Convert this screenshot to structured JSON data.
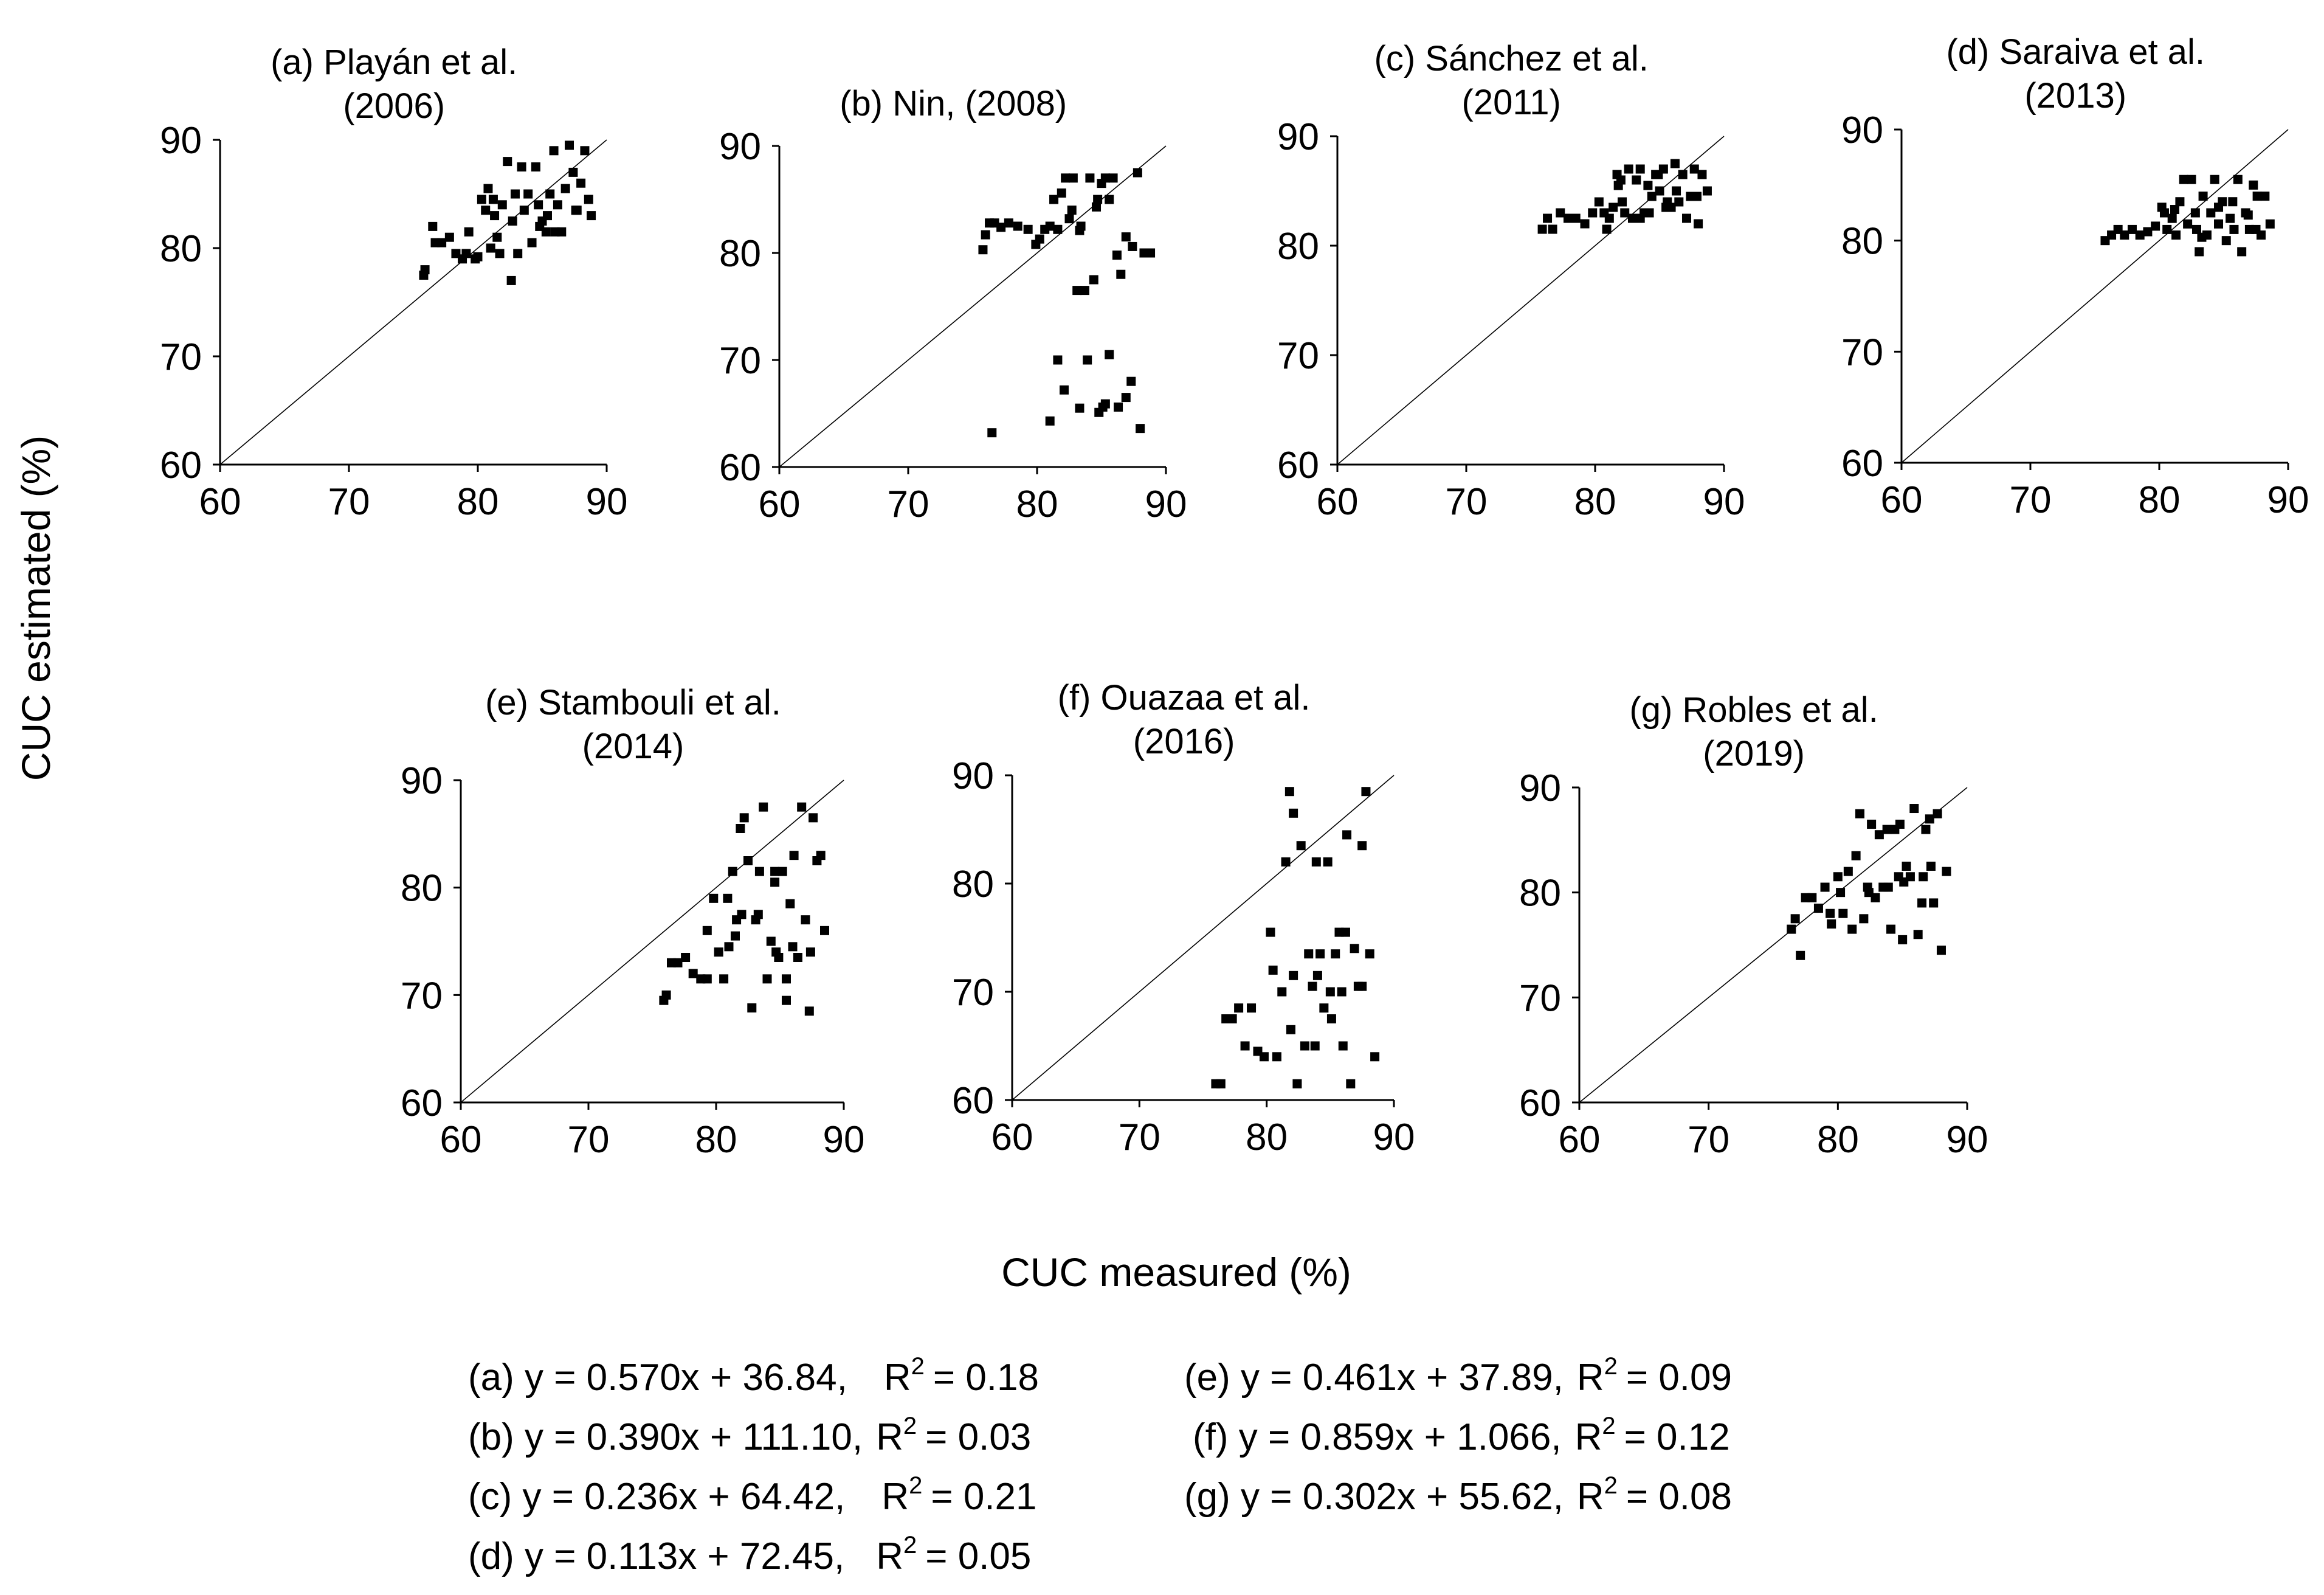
{
  "figure": {
    "ylabel": "CUC estimated (%)",
    "xlabel": "CUC measured (%)"
  },
  "chart_data": [
    {
      "type": "scatter",
      "id": "a",
      "title_lines": [
        "(a) Playán et al.",
        "(2006)"
      ],
      "xlim": [
        60,
        90
      ],
      "ylim": [
        60,
        90
      ],
      "xticks": [
        60,
        70,
        80,
        90
      ],
      "yticks": [
        60,
        70,
        80,
        90
      ],
      "reference_line": "1:1",
      "x": [
        75.8,
        75.9,
        76.5,
        76.7,
        77.2,
        77.8,
        78.3,
        78.8,
        79.3,
        79.8,
        80.3,
        80.8,
        81.0,
        81.3,
        81.5,
        81.7,
        81.9,
        82.3,
        82.6,
        82.9,
        83.1,
        83.4,
        83.6,
        83.9,
        84.2,
        84.5,
        84.8,
        85.0,
        85.3,
        85.6,
        85.9,
        86.2,
        86.5,
        86.8,
        87.1,
        87.4,
        87.7,
        88.0,
        88.3,
        88.6,
        88.8,
        80.6,
        81.2,
        79.1,
        82.7,
        84.7,
        86.0,
        87.6,
        80.0,
        85.4
      ],
      "y": [
        77.5,
        78.0,
        82.0,
        80.5,
        80.5,
        81.0,
        79.5,
        79.0,
        81.5,
        79.0,
        84.5,
        85.5,
        80.0,
        83.0,
        81.0,
        79.5,
        84.0,
        88.0,
        77.0,
        85.0,
        79.5,
        87.5,
        83.5,
        85.0,
        80.5,
        87.5,
        82.0,
        82.5,
        81.5,
        85.0,
        89.0,
        84.0,
        81.5,
        85.5,
        89.5,
        87.0,
        83.5,
        86.0,
        89.0,
        84.5,
        83.0,
        83.5,
        84.5,
        79.5,
        82.5,
        84.0,
        81.5,
        83.5,
        79.2,
        83.0
      ]
    },
    {
      "type": "scatter",
      "id": "b",
      "title_lines": [
        "(b) Nin, (2008)"
      ],
      "xlim": [
        60,
        90
      ],
      "ylim": [
        60,
        90
      ],
      "xticks": [
        60,
        70,
        80,
        90
      ],
      "yticks": [
        60,
        70,
        80,
        90
      ],
      "reference_line": "1:1",
      "x": [
        75.8,
        76.0,
        76.3,
        76.7,
        77.2,
        77.8,
        78.5,
        79.3,
        79.9,
        80.2,
        80.6,
        81.0,
        81.3,
        81.6,
        81.9,
        82.2,
        82.5,
        82.8,
        83.1,
        83.4,
        83.7,
        84.1,
        84.4,
        84.7,
        85.0,
        85.3,
        85.6,
        85.9,
        86.2,
        86.5,
        86.9,
        87.4,
        87.8,
        88.3,
        88.8,
        82.7,
        84.6,
        83.3,
        76.5,
        81.0,
        81.6,
        82.1,
        83.3,
        83.9,
        84.8,
        85.1,
        85.6,
        86.3,
        86.9,
        87.3,
        88.0,
        85.3
      ],
      "y": [
        80.3,
        81.7,
        82.8,
        82.8,
        82.4,
        82.8,
        82.5,
        82.2,
        80.8,
        81.3,
        82.2,
        82.5,
        85.0,
        82.2,
        85.6,
        87.0,
        83.2,
        87.0,
        76.5,
        82.5,
        76.5,
        87.0,
        77.5,
        85.0,
        86.5,
        87.0,
        85.0,
        87.0,
        79.8,
        78.0,
        81.5,
        80.6,
        87.5,
        80.0,
        80.0,
        84.0,
        84.3,
        82.1,
        63.2,
        64.3,
        70.0,
        67.2,
        65.5,
        70.0,
        65.1,
        65.6,
        70.5,
        65.6,
        66.5,
        68.0,
        63.6,
        65.9
      ]
    },
    {
      "type": "scatter",
      "id": "c",
      "title_lines": [
        "(c) Sánchez et al.",
        "(2011)"
      ],
      "xlim": [
        60,
        90
      ],
      "ylim": [
        60,
        90
      ],
      "xticks": [
        60,
        70,
        80,
        90
      ],
      "yticks": [
        60,
        70,
        80,
        90
      ],
      "reference_line": "1:1",
      "x": [
        75.9,
        76.3,
        76.7,
        77.3,
        77.9,
        78.5,
        79.2,
        79.8,
        80.3,
        80.7,
        81.1,
        81.4,
        81.7,
        82.0,
        82.3,
        82.6,
        82.9,
        83.2,
        83.5,
        83.8,
        84.1,
        84.4,
        84.7,
        85.0,
        85.3,
        85.6,
        85.9,
        86.2,
        86.5,
        86.8,
        87.1,
        87.4,
        87.7,
        88.0,
        88.3,
        88.7,
        82.1,
        83.5,
        84.9,
        86.3,
        80.9,
        85.5,
        87.9,
        81.8,
        84.2
      ],
      "y": [
        81.5,
        82.5,
        81.5,
        83.0,
        82.5,
        82.5,
        82.0,
        83.0,
        84.0,
        83.0,
        82.5,
        83.5,
        86.5,
        86.0,
        83.0,
        87.0,
        82.5,
        86.0,
        87.0,
        83.0,
        85.5,
        84.5,
        86.5,
        85.0,
        87.0,
        84.0,
        83.5,
        87.5,
        84.0,
        86.5,
        82.5,
        84.5,
        87.0,
        82.0,
        86.5,
        85.0,
        84.0,
        82.5,
        86.5,
        85.0,
        81.5,
        83.5,
        84.5,
        85.5,
        83.0
      ]
    },
    {
      "type": "scatter",
      "id": "d",
      "title_lines": [
        "(d) Saraiva et al.",
        "(2013)"
      ],
      "xlim": [
        60,
        90
      ],
      "ylim": [
        60,
        90
      ],
      "xticks": [
        60,
        70,
        80,
        90
      ],
      "yticks": [
        60,
        70,
        80,
        90
      ],
      "reference_line": "1:1",
      "x": [
        75.8,
        76.3,
        76.8,
        77.3,
        77.9,
        78.5,
        79.1,
        79.7,
        80.2,
        80.6,
        81.0,
        81.3,
        81.6,
        81.9,
        82.2,
        82.5,
        82.8,
        83.1,
        83.4,
        83.7,
        84.0,
        84.3,
        84.6,
        84.9,
        85.2,
        85.5,
        85.8,
        86.1,
        86.4,
        86.7,
        87.0,
        87.3,
        87.6,
        87.9,
        88.2,
        88.6,
        81.2,
        82.9,
        84.6,
        86.9,
        80.4,
        85.7,
        87.5,
        83.3
      ],
      "y": [
        80.0,
        80.5,
        81.0,
        80.5,
        81.0,
        80.5,
        80.8,
        81.3,
        83.0,
        81.0,
        82.0,
        80.5,
        83.5,
        85.5,
        81.5,
        85.5,
        82.5,
        79.0,
        84.0,
        80.5,
        82.5,
        85.5,
        81.5,
        83.5,
        80.0,
        82.0,
        81.0,
        85.5,
        79.0,
        82.5,
        81.0,
        85.0,
        84.0,
        80.5,
        84.0,
        81.5,
        82.8,
        81.0,
        83.0,
        82.3,
        82.5,
        83.5,
        81.0,
        80.3
      ]
    },
    {
      "type": "scatter",
      "id": "e",
      "title_lines": [
        "(e) Stambouli et al.",
        "(2014)"
      ],
      "xlim": [
        60,
        90
      ],
      "ylim": [
        60,
        90
      ],
      "xticks": [
        60,
        70,
        80,
        90
      ],
      "yticks": [
        60,
        70,
        80,
        90
      ],
      "reference_line": "1:1",
      "x": [
        75.9,
        76.1,
        76.5,
        77.0,
        77.6,
        78.2,
        78.8,
        79.3,
        79.8,
        80.2,
        80.6,
        81.0,
        81.3,
        81.6,
        81.9,
        82.2,
        82.5,
        82.8,
        83.1,
        83.4,
        83.7,
        84.0,
        84.3,
        84.6,
        84.9,
        85.2,
        85.5,
        85.8,
        86.1,
        86.4,
        86.7,
        87.0,
        87.3,
        87.6,
        87.9,
        88.2,
        88.5,
        82.0,
        83.3,
        84.7,
        86.0,
        87.4,
        80.9,
        81.5,
        85.5,
        79.3,
        84.6
      ],
      "y": [
        69.5,
        70.0,
        73.0,
        73.0,
        73.5,
        72.0,
        71.5,
        71.5,
        79.0,
        74.0,
        71.5,
        74.5,
        81.5,
        77.0,
        85.5,
        86.5,
        82.5,
        68.8,
        77.0,
        81.5,
        87.5,
        71.5,
        75.0,
        81.5,
        73.5,
        81.5,
        69.5,
        78.5,
        83.0,
        73.5,
        87.5,
        77.0,
        68.5,
        86.5,
        82.5,
        83.0,
        76.0,
        77.5,
        77.5,
        74.0,
        74.5,
        74.0,
        79.0,
        75.5,
        71.5,
        76.0,
        80.5
      ]
    },
    {
      "type": "scatter",
      "id": "f",
      "title_lines": [
        "(f) Ouazaa et al.",
        "(2016)"
      ],
      "xlim": [
        60,
        90
      ],
      "ylim": [
        60,
        90
      ],
      "xticks": [
        60,
        70,
        80,
        90
      ],
      "yticks": [
        60,
        70,
        80,
        90
      ],
      "reference_line": "1:1",
      "x": [
        76.0,
        76.4,
        76.8,
        77.3,
        77.8,
        78.3,
        78.8,
        79.3,
        79.8,
        80.3,
        80.8,
        81.2,
        81.5,
        81.8,
        82.1,
        82.4,
        82.7,
        83.0,
        83.3,
        83.6,
        83.9,
        84.2,
        84.5,
        84.8,
        85.1,
        85.4,
        85.7,
        86.0,
        86.3,
        86.6,
        86.9,
        87.2,
        87.5,
        87.8,
        88.1,
        88.5,
        82.1,
        84.0,
        85.9,
        87.5,
        80.5,
        83.8,
        86.2,
        81.9,
        85.0
      ],
      "y": [
        61.5,
        61.5,
        67.5,
        67.5,
        68.5,
        65.0,
        68.5,
        64.5,
        64.0,
        75.5,
        64.0,
        70.0,
        82.0,
        88.5,
        71.5,
        61.5,
        83.5,
        65.0,
        73.5,
        70.5,
        82.0,
        73.5,
        68.5,
        82.0,
        67.5,
        73.5,
        75.5,
        65.0,
        84.5,
        61.5,
        74.0,
        70.5,
        83.5,
        88.5,
        73.5,
        64.0,
        86.5,
        71.5,
        70.0,
        70.5,
        72.0,
        65.0,
        75.5,
        66.5,
        70.0
      ]
    },
    {
      "type": "scatter",
      "id": "g",
      "title_lines": [
        "(g) Robles et al.",
        "(2019)"
      ],
      "xlim": [
        60,
        90
      ],
      "ylim": [
        60,
        90
      ],
      "xticks": [
        60,
        70,
        80,
        90
      ],
      "yticks": [
        60,
        70,
        80,
        90
      ],
      "reference_line": "1:1",
      "x": [
        76.4,
        76.7,
        77.1,
        77.5,
        78.0,
        78.5,
        79.0,
        79.5,
        80.0,
        80.4,
        80.8,
        81.1,
        81.4,
        81.7,
        82.0,
        82.3,
        82.6,
        82.9,
        83.2,
        83.5,
        83.8,
        84.1,
        84.4,
        84.7,
        85.0,
        85.3,
        85.6,
        85.9,
        86.2,
        86.5,
        86.8,
        87.1,
        87.4,
        87.7,
        88.0,
        88.4,
        80.2,
        82.4,
        83.9,
        85.1,
        86.6,
        79.4,
        84.8,
        87.2
      ],
      "y": [
        76.5,
        77.5,
        74.0,
        79.5,
        79.5,
        78.5,
        80.5,
        77.0,
        81.5,
        78.0,
        82.0,
        76.5,
        83.5,
        87.5,
        77.5,
        80.5,
        86.5,
        79.5,
        85.5,
        80.5,
        86.0,
        76.5,
        86.0,
        81.5,
        75.5,
        82.5,
        81.5,
        88.0,
        76.0,
        79.0,
        86.0,
        87.0,
        79.0,
        87.5,
        74.5,
        82.0,
        80.0,
        80.0,
        80.5,
        81.0,
        81.5,
        78.0,
        86.5,
        82.5
      ]
    }
  ],
  "equations": [
    {
      "prefix": "(a) y = 0.570x + 36.84,",
      "r2_value": "= 0.18"
    },
    {
      "prefix": "(b) y = 0.390x + 111.10,",
      "r2_value": "= 0.03"
    },
    {
      "prefix": "(c) y = 0.236x + 64.42,",
      "r2_value": "= 0.21"
    },
    {
      "prefix": "(d) y = 0.113x + 72.45,",
      "r2_value": "= 0.05"
    },
    {
      "prefix": "(e) y = 0.461x + 37.89,",
      "r2_value": "= 0.09"
    },
    {
      "prefix": "(f) y = 0.859x + 1.066,",
      "r2_value": "= 0.12"
    },
    {
      "prefix": "(g) y = 0.302x + 55.62,",
      "r2_value": "= 0.08"
    }
  ],
  "r2_symbol": "R",
  "r2_superscript": "2"
}
